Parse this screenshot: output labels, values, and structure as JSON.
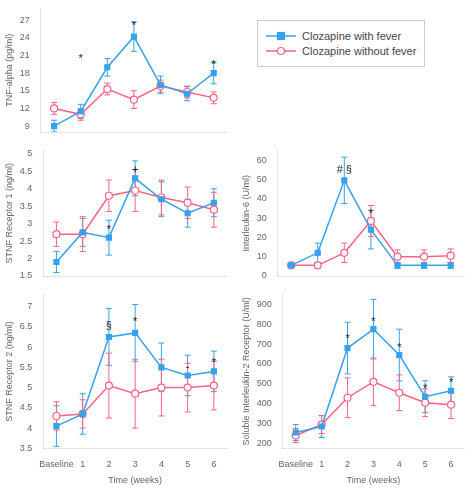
{
  "chart_data": [
    {
      "type": "line",
      "y_label": "TNF-alpha (pg/ml)",
      "categories": [
        "Baseline",
        "1",
        "2",
        "3",
        "4",
        "5",
        "6"
      ],
      "tick_labels": "y",
      "ylim": [
        8,
        29
      ],
      "yticks": [
        9,
        12,
        15,
        18,
        21,
        24,
        27
      ],
      "grid": false,
      "legend": "right",
      "series": [
        {
          "name": "Clozapine with fever",
          "marker": "square",
          "values": [
            9.0,
            11.5,
            19.0,
            24.2,
            16.0,
            14.5,
            18.0
          ],
          "errors": [
            1.0,
            1.2,
            1.5,
            2.5,
            1.5,
            1.2,
            1.8
          ]
        },
        {
          "name": "Clozapine without fever",
          "marker": "circle",
          "values": [
            12.0,
            11.0,
            15.3,
            13.5,
            15.8,
            14.8,
            13.8
          ],
          "errors": [
            1.0,
            1.0,
            1.0,
            1.5,
            1.0,
            1.0,
            1.0
          ]
        }
      ],
      "annotations": [
        {
          "x": "1",
          "y": 19.5,
          "text": "*"
        },
        {
          "x": "3",
          "y": 25.0,
          "text": "*"
        },
        {
          "x": "6",
          "y": 18.5,
          "text": "*"
        }
      ]
    },
    {
      "type": "line",
      "y_label": "STNF Receptor 1 (ng/ml)",
      "categories": [
        "Baseline",
        "1",
        "2",
        "3",
        "4",
        "5",
        "6"
      ],
      "tick_labels": "y",
      "ylim": [
        1.5,
        5.1
      ],
      "yticks": [
        1.5,
        2,
        2.5,
        3,
        3.5,
        4,
        4.5,
        5
      ],
      "grid": false,
      "series": [
        {
          "name": "Clozapine with fever",
          "marker": "square",
          "values": [
            1.9,
            2.75,
            2.6,
            4.3,
            3.7,
            3.3,
            3.6
          ],
          "errors": [
            0.3,
            0.4,
            0.5,
            0.5,
            0.5,
            0.4,
            0.4
          ]
        },
        {
          "name": "Clozapine without fever",
          "marker": "circle",
          "values": [
            2.7,
            2.7,
            3.8,
            3.95,
            3.75,
            3.6,
            3.4
          ],
          "errors": [
            0.35,
            0.5,
            0.45,
            0.6,
            0.5,
            0.45,
            0.5
          ]
        }
      ],
      "annotations": [
        {
          "x": "2",
          "y": 2.65,
          "text": "*"
        },
        {
          "x": "3",
          "y": 4.38,
          "text": "+"
        }
      ]
    },
    {
      "type": "line",
      "y_label": "STNF Receptor 2 (ng/ml)",
      "x_label": "Time (weeks)",
      "categories": [
        "Baseline",
        "1",
        "2",
        "3",
        "4",
        "5",
        "6"
      ],
      "ylim": [
        3.5,
        7.3
      ],
      "yticks": [
        3.5,
        4,
        4.5,
        5,
        5.5,
        6,
        6.5,
        7
      ],
      "grid": false,
      "series": [
        {
          "name": "Clozapine with fever",
          "marker": "square",
          "values": [
            4.05,
            4.35,
            6.25,
            6.35,
            5.5,
            5.3,
            5.4
          ],
          "errors": [
            0.5,
            0.5,
            0.7,
            0.7,
            0.6,
            0.5,
            0.5
          ]
        },
        {
          "name": "Clozapine without fever",
          "marker": "circle",
          "values": [
            4.3,
            4.35,
            5.05,
            4.85,
            5.0,
            5.0,
            5.05
          ],
          "errors": [
            0.35,
            0.35,
            0.8,
            0.85,
            0.7,
            0.6,
            0.6
          ]
        }
      ],
      "annotations": [
        {
          "x": "2",
          "y": 6.38,
          "text": "§"
        },
        {
          "x": "3",
          "y": 6.48,
          "text": "*"
        },
        {
          "x": "5",
          "y": 5.38,
          "text": "-"
        },
        {
          "x": "6",
          "y": 5.48,
          "text": "*"
        }
      ]
    },
    {
      "type": "line",
      "y_label": "Interleukin-6 (U/ml)",
      "categories": [
        "Baseline",
        "1",
        "2",
        "3",
        "4",
        "5",
        "6"
      ],
      "tick_labels": "y",
      "ylim": [
        0,
        65
      ],
      "yticks": [
        0,
        10,
        20,
        30,
        40,
        50,
        60
      ],
      "grid": false,
      "series": [
        {
          "name": "Clozapine with fever",
          "marker": "square",
          "values": [
            5.5,
            12.0,
            49.5,
            24.0,
            5.5,
            5.5,
            5.5
          ],
          "errors": [
            1.0,
            5.0,
            12.0,
            10.0,
            1.5,
            1.5,
            1.5
          ]
        },
        {
          "name": "Clozapine without fever",
          "marker": "circle",
          "values": [
            5.5,
            5.5,
            12.0,
            28.5,
            10.0,
            10.0,
            10.5
          ],
          "errors": [
            1.0,
            1.5,
            5.0,
            8.0,
            3.5,
            3.5,
            3.5
          ]
        }
      ],
      "annotations": [
        {
          "x": "2",
          "y": 51.8,
          "text": "# §"
        },
        {
          "x": "3",
          "y": 29.0,
          "text": "*"
        }
      ]
    },
    {
      "type": "line",
      "y_label": "Soluble Interleukin-2 Receptor (U/ml)",
      "x_label": "Time (weeks)",
      "categories": [
        "Baseline",
        "1",
        "2",
        "3",
        "4",
        "5",
        "6"
      ],
      "ylim": [
        175,
        950
      ],
      "yticks": [
        200,
        300,
        400,
        500,
        600,
        700,
        800,
        900
      ],
      "grid": false,
      "series": [
        {
          "name": "Clozapine with fever",
          "marker": "square",
          "values": [
            255,
            285,
            680,
            775,
            645,
            435,
            465
          ],
          "errors": [
            40,
            55,
            130,
            150,
            130,
            80,
            70
          ]
        },
        {
          "name": "Clozapine without fever",
          "marker": "circle",
          "values": [
            240,
            295,
            430,
            510,
            455,
            405,
            395
          ],
          "errors": [
            35,
            45,
            100,
            120,
            90,
            70,
            70
          ]
        }
      ],
      "annotations": [
        {
          "x": "2",
          "y": 700,
          "text": "*"
        },
        {
          "x": "3",
          "y": 785,
          "text": "*"
        },
        {
          "x": "4",
          "y": 655,
          "text": "*"
        },
        {
          "x": "5",
          "y": 445,
          "text": "*"
        },
        {
          "x": "6",
          "y": 475,
          "text": "*"
        }
      ]
    }
  ]
}
